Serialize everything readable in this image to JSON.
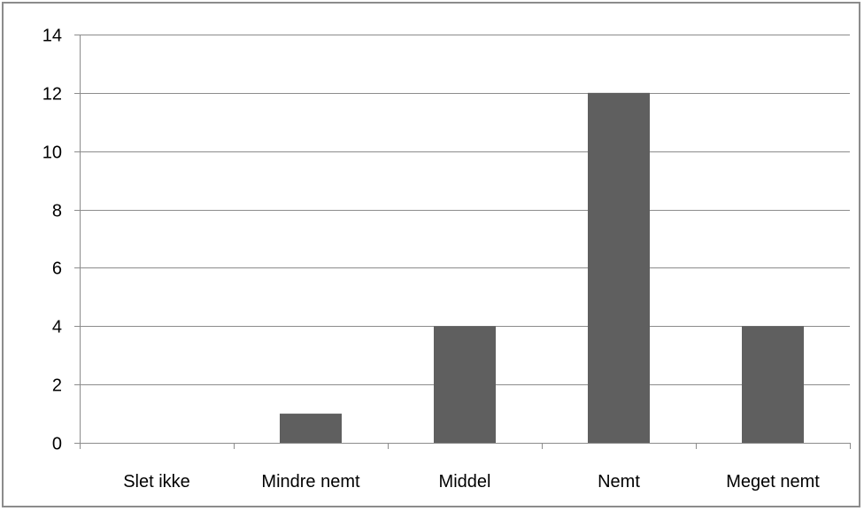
{
  "chart_data": {
    "type": "bar",
    "categories": [
      "Slet ikke",
      "Mindre nemt",
      "Middel",
      "Nemt",
      "Meget nemt"
    ],
    "values": [
      0,
      1,
      4,
      12,
      4
    ],
    "ylim": [
      0,
      14
    ],
    "yticks": [
      0,
      2,
      4,
      6,
      8,
      10,
      12,
      14
    ],
    "grid": true,
    "legend": "none",
    "colors": {
      "bar": "#5f5f5f",
      "grid": "#8c8c8c",
      "axis": "#8c8c8c",
      "frame": "#8c8c8c"
    }
  }
}
